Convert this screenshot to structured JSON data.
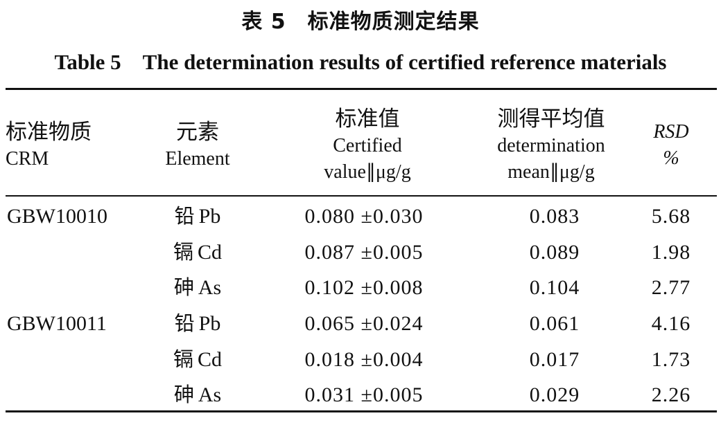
{
  "caption": {
    "cn": "表 5　标准物质测定结果",
    "en": "Table 5　The determination results of certified reference materials"
  },
  "headers": {
    "crm": {
      "cn": "标准物质",
      "en": "CRM"
    },
    "element": {
      "cn": "元素",
      "en": "Element"
    },
    "certified": {
      "cn": "标准值",
      "en1": "Certified",
      "en2": "value∥μg/g"
    },
    "determination": {
      "cn": "测得平均值",
      "en1": "determination",
      "en2": "mean∥μg/g"
    },
    "rsd": {
      "en1": "RSD",
      "en2": "%"
    }
  },
  "rows": [
    {
      "crm": "GBW10010",
      "element_cn": "铅",
      "element_en": "Pb",
      "certified": "0.080 ±0.030",
      "mean": "0.083",
      "rsd": "5.68"
    },
    {
      "crm": "",
      "element_cn": "镉",
      "element_en": "Cd",
      "certified": "0.087 ±0.005",
      "mean": "0.089",
      "rsd": "1.98"
    },
    {
      "crm": "",
      "element_cn": "砷",
      "element_en": "As",
      "certified": "0.102 ±0.008",
      "mean": "0.104",
      "rsd": "2.77"
    },
    {
      "crm": "GBW10011",
      "element_cn": "铅",
      "element_en": "Pb",
      "certified": "0.065 ±0.024",
      "mean": "0.061",
      "rsd": "4.16"
    },
    {
      "crm": "",
      "element_cn": "镉",
      "element_en": "Cd",
      "certified": "0.018 ±0.004",
      "mean": "0.017",
      "rsd": "1.73"
    },
    {
      "crm": "",
      "element_cn": "砷",
      "element_en": "As",
      "certified": "0.031 ±0.005",
      "mean": "0.029",
      "rsd": "2.26"
    }
  ]
}
